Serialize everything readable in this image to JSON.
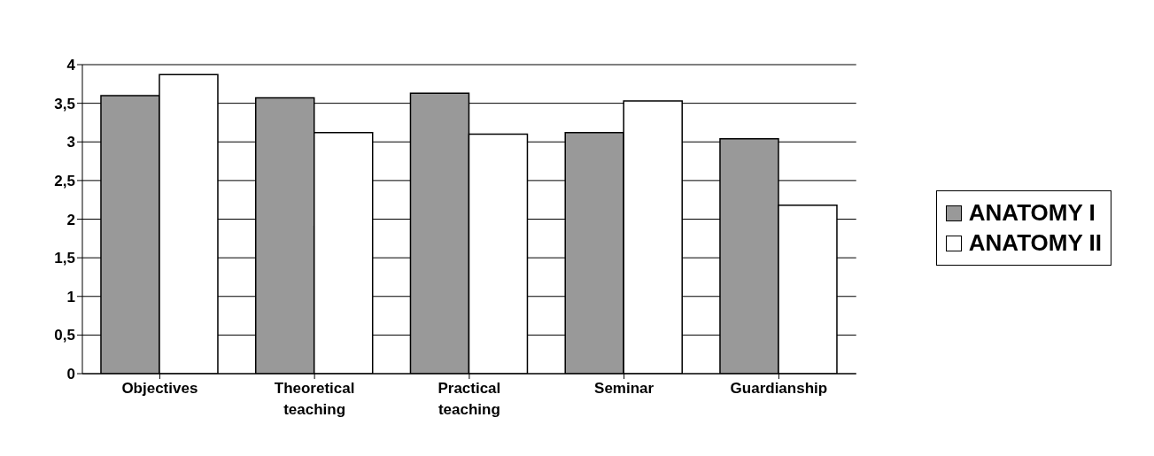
{
  "chart_data": {
    "type": "bar",
    "categories": [
      "Objectives",
      "Theoretical teaching",
      "Practical teaching",
      "Seminar",
      "Guardianship"
    ],
    "series": [
      {
        "name": "ANATOMY I",
        "color": "#999999",
        "values": [
          3.6,
          3.57,
          3.63,
          3.12,
          3.04
        ]
      },
      {
        "name": "ANATOMY II",
        "color": "#ffffff",
        "values": [
          3.87,
          3.12,
          3.1,
          3.53,
          2.18
        ]
      }
    ],
    "ylim": [
      0,
      4
    ],
    "yticks": [
      0,
      {
        "value": 0.5,
        "label": "0,5"
      },
      1,
      {
        "value": 1.5,
        "label": "1,5"
      },
      2,
      {
        "value": 2.5,
        "label": "2,5"
      },
      3,
      {
        "value": 3.5,
        "label": "3,5"
      },
      4
    ],
    "grid": "y",
    "legend": "right"
  }
}
